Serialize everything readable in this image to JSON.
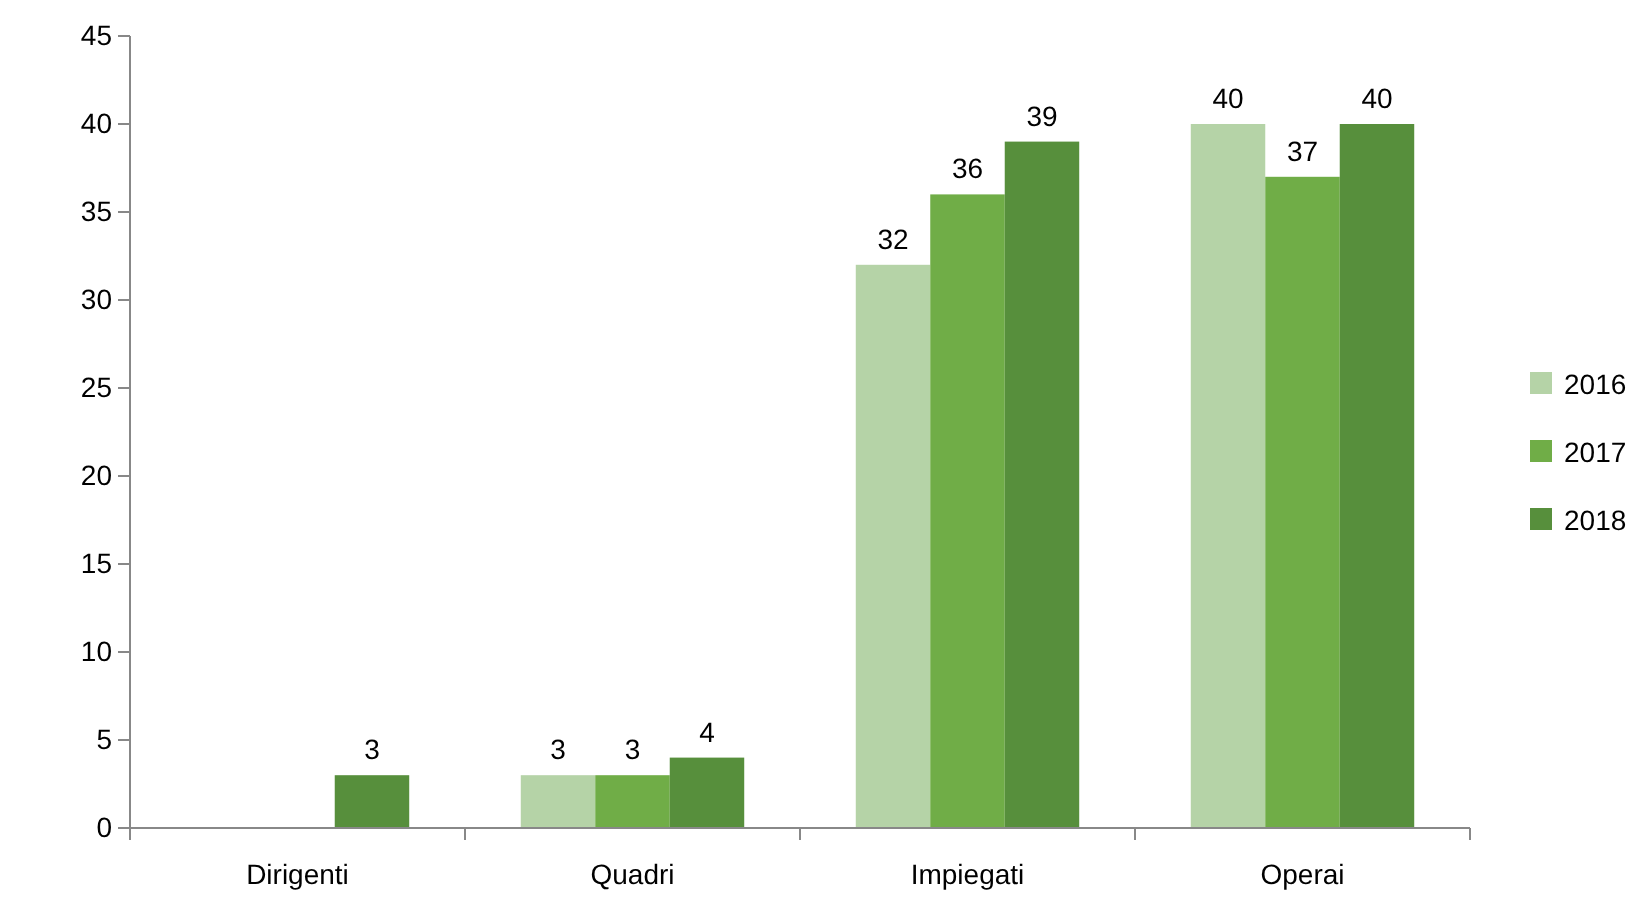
{
  "chart_data": {
    "type": "bar",
    "categories": [
      "Dirigenti",
      "Quadri",
      "Impiegati",
      "Operai"
    ],
    "series": [
      {
        "name": "2016",
        "color": "#b5d3a7",
        "values": [
          null,
          3,
          32,
          40
        ],
        "value_labels": [
          null,
          "3",
          "32",
          "40"
        ]
      },
      {
        "name": "2017",
        "color": "#70ad47",
        "values": [
          null,
          3,
          36,
          37
        ],
        "value_labels": [
          null,
          "3",
          "36",
          "37"
        ]
      },
      {
        "name": "2018",
        "color": "#578f3c",
        "values": [
          3,
          4,
          39,
          40
        ],
        "value_labels": [
          "3",
          "4",
          "39",
          "40"
        ]
      }
    ],
    "ylim": [
      0,
      45
    ],
    "yticks": [
      0,
      5,
      10,
      15,
      20,
      25,
      30,
      35,
      40,
      45
    ],
    "grid": false,
    "legend": "right"
  }
}
